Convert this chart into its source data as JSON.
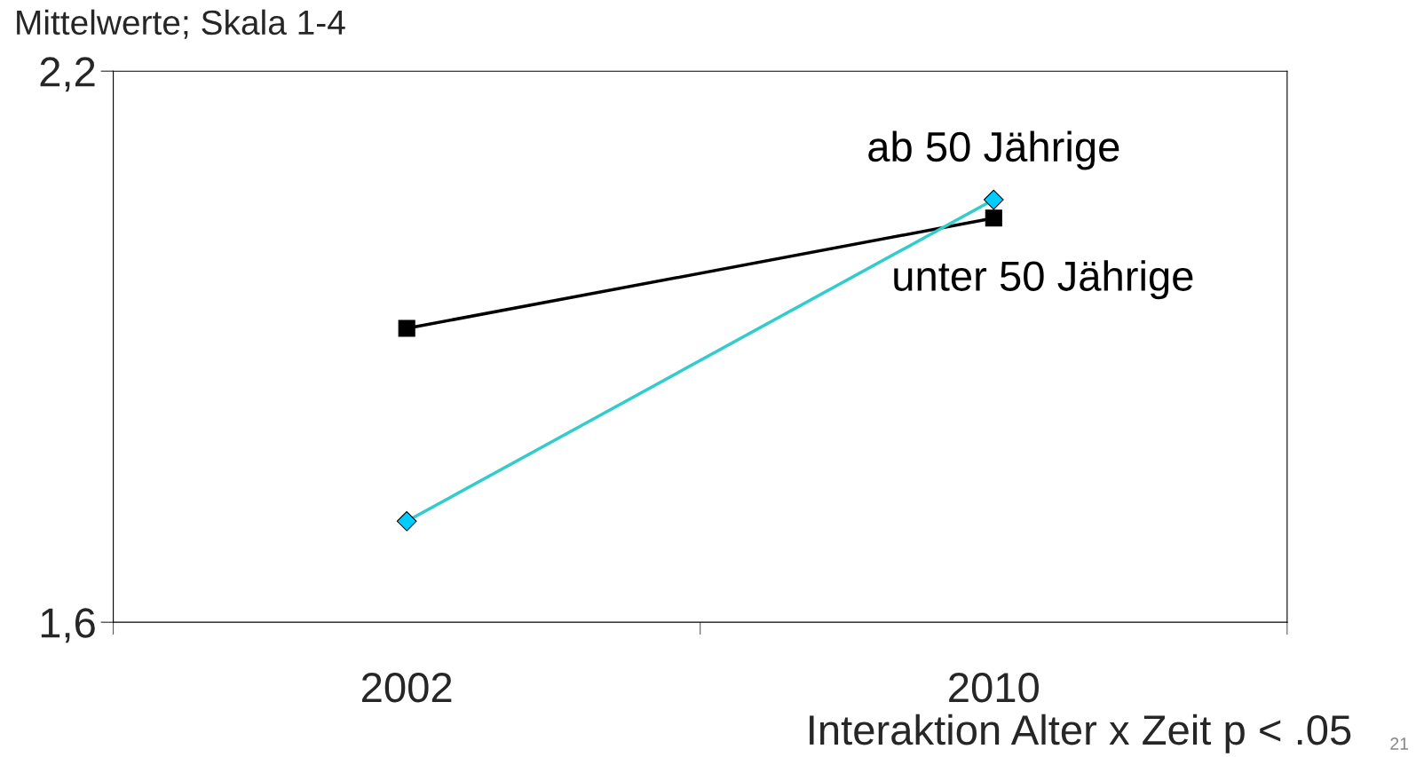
{
  "chart_data": {
    "type": "line",
    "ylabel": "Mittelwerte; Skala 1-4",
    "categories": [
      "2002",
      "2010"
    ],
    "series": [
      {
        "name": "unter 50 Jährige",
        "color": "#000000",
        "marker": "square",
        "values": [
          1.92,
          2.04
        ]
      },
      {
        "name": "ab 50 Jährige",
        "color": "#33cccc",
        "marker": "diamond",
        "values": [
          1.71,
          2.06
        ]
      }
    ],
    "ylim": [
      1.6,
      2.2
    ],
    "yticks": [
      {
        "value": 1.6,
        "label": "1,6"
      },
      {
        "value": 2.2,
        "label": "2,2"
      }
    ],
    "grid": false,
    "legend": false,
    "annotations": [
      "Interaktion Alter x Zeit p < .05",
      "21"
    ]
  }
}
